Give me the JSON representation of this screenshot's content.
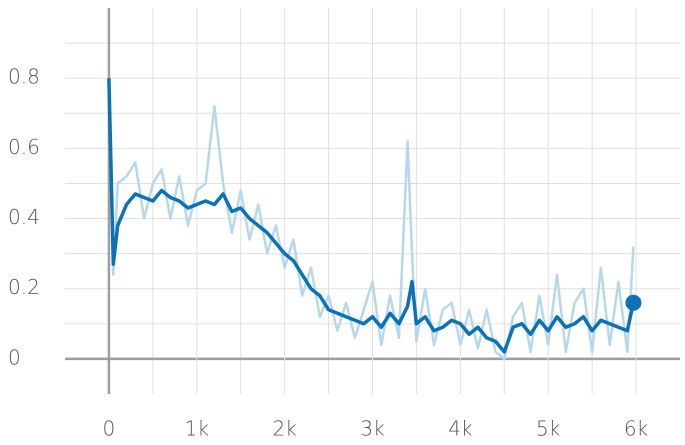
{
  "chart_data": {
    "type": "line",
    "x": [
      0,
      50,
      100,
      200,
      300,
      400,
      500,
      600,
      700,
      800,
      900,
      1000,
      1100,
      1200,
      1300,
      1400,
      1500,
      1600,
      1700,
      1800,
      1900,
      2000,
      2100,
      2200,
      2300,
      2400,
      2500,
      2600,
      2700,
      2800,
      2900,
      3000,
      3100,
      3200,
      3300,
      3400,
      3450,
      3500,
      3600,
      3700,
      3800,
      3900,
      4000,
      4100,
      4200,
      4300,
      4400,
      4500,
      4600,
      4700,
      4800,
      4900,
      5000,
      5100,
      5200,
      5300,
      5400,
      5500,
      5600,
      5700,
      5800,
      5900,
      5970
    ],
    "series": [
      {
        "color": "#b7d8ec",
        "values": [
          0.8,
          0.24,
          0.5,
          0.52,
          0.56,
          0.4,
          0.5,
          0.54,
          0.4,
          0.52,
          0.38,
          0.48,
          0.5,
          0.72,
          0.5,
          0.36,
          0.48,
          0.34,
          0.44,
          0.3,
          0.38,
          0.26,
          0.34,
          0.18,
          0.26,
          0.12,
          0.18,
          0.08,
          0.16,
          0.06,
          0.14,
          0.22,
          0.04,
          0.18,
          0.06,
          0.62,
          0.3,
          0.05,
          0.2,
          0.04,
          0.14,
          0.16,
          0.04,
          0.14,
          0.03,
          0.14,
          0.02,
          0.0,
          0.12,
          0.16,
          0.02,
          0.18,
          0.04,
          0.24,
          0.02,
          0.16,
          0.2,
          0.02,
          0.26,
          0.04,
          0.22,
          0.02,
          0.32
        ]
      },
      {
        "color": "#0b72b5",
        "values": [
          0.8,
          0.27,
          0.38,
          0.44,
          0.47,
          0.46,
          0.45,
          0.48,
          0.46,
          0.45,
          0.43,
          0.44,
          0.45,
          0.44,
          0.47,
          0.42,
          0.43,
          0.4,
          0.38,
          0.36,
          0.33,
          0.3,
          0.28,
          0.24,
          0.2,
          0.18,
          0.14,
          0.13,
          0.12,
          0.11,
          0.1,
          0.12,
          0.09,
          0.13,
          0.1,
          0.15,
          0.22,
          0.1,
          0.12,
          0.08,
          0.09,
          0.11,
          0.1,
          0.07,
          0.09,
          0.06,
          0.05,
          0.02,
          0.09,
          0.1,
          0.07,
          0.11,
          0.08,
          0.12,
          0.09,
          0.1,
          0.12,
          0.08,
          0.11,
          0.1,
          0.09,
          0.08,
          0.16
        ]
      }
    ],
    "xlim": [
      -500,
      6500
    ],
    "ylim": [
      -0.1,
      1.0
    ],
    "xticks": [
      0,
      {
        "value": 1000,
        "label": "1k"
      },
      {
        "value": 2000,
        "label": "2k"
      },
      {
        "value": 3000,
        "label": "3k"
      },
      {
        "value": 4000,
        "label": "4k"
      },
      {
        "value": 5000,
        "label": "5k"
      },
      {
        "value": 6000,
        "label": "6k"
      }
    ],
    "yticks": [
      0,
      0.2,
      0.4,
      0.6,
      0.8
    ],
    "grid": true
  }
}
